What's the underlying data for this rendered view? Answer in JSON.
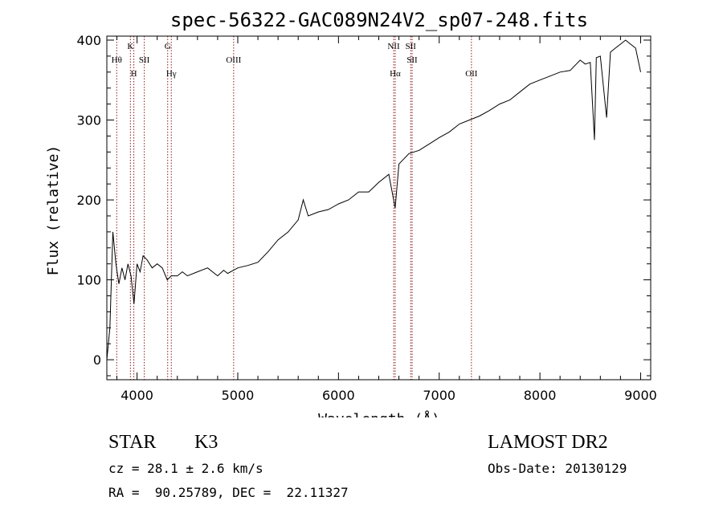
{
  "chart_data": {
    "type": "line",
    "title": "spec-56322-GAC089N24V2_sp07-248.fits",
    "xlabel": "Wavelength (Å)",
    "ylabel": "Flux (relative)",
    "xlim": [
      3700,
      9100
    ],
    "ylim": [
      -25,
      405
    ],
    "x_ticks": [
      4000,
      5000,
      6000,
      7000,
      8000,
      9000
    ],
    "y_ticks": [
      0,
      100,
      200,
      300,
      400
    ],
    "x_tick_labels": [
      "4000",
      "5000",
      "6000",
      "7000",
      "8000",
      "9000"
    ],
    "y_tick_labels": [
      "0",
      "100",
      "200",
      "300",
      "400"
    ],
    "grid": false,
    "line_color": "#000000",
    "marker_color": "#8b1a1a",
    "series": [
      {
        "x": [
          3700,
          3730,
          3760,
          3790,
          3820,
          3850,
          3880,
          3910,
          3940,
          3970,
          4000,
          4030,
          4060,
          4100,
          4150,
          4200,
          4250,
          4300,
          4340,
          4400,
          4450,
          4500,
          4600,
          4700,
          4800,
          4860,
          4900,
          5000,
          5100,
          5200,
          5300,
          5400,
          5500,
          5600,
          5650,
          5700,
          5800,
          5900,
          6000,
          6100,
          6200,
          6300,
          6400,
          6500,
          6563,
          6600,
          6700,
          6800,
          6900,
          7000,
          7100,
          7200,
          7300,
          7400,
          7500,
          7600,
          7700,
          7800,
          7900,
          8000,
          8100,
          8200,
          8300,
          8400,
          8450,
          8500,
          8542,
          8560,
          8600,
          8662,
          8700,
          8750,
          8800,
          8850,
          8900,
          8950,
          9000
        ],
        "y": [
          0,
          40,
          160,
          120,
          95,
          115,
          100,
          120,
          105,
          70,
          120,
          110,
          130,
          125,
          115,
          120,
          115,
          100,
          105,
          105,
          110,
          105,
          110,
          115,
          105,
          112,
          108,
          115,
          118,
          122,
          135,
          150,
          160,
          175,
          200,
          180,
          185,
          188,
          195,
          200,
          210,
          210,
          222,
          232,
          190,
          245,
          258,
          262,
          270,
          278,
          285,
          295,
          300,
          305,
          312,
          320,
          325,
          335,
          345,
          350,
          355,
          360,
          362,
          375,
          370,
          372,
          275,
          378,
          380,
          303,
          385,
          390,
          395,
          400,
          395,
          390,
          360
        ]
      }
    ],
    "line_markers": [
      {
        "wavelength": 3798,
        "label": "Hθ",
        "row": 2
      },
      {
        "wavelength": 3934,
        "label": "K",
        "row": 1
      },
      {
        "wavelength": 3968,
        "label": "H",
        "row": 3
      },
      {
        "wavelength": 4072,
        "label": "SII",
        "row": 2
      },
      {
        "wavelength": 4304,
        "label": "G",
        "row": 1
      },
      {
        "wavelength": 4340,
        "label": "Hγ",
        "row": 3
      },
      {
        "wavelength": 4959,
        "label": "OIII",
        "row": 2
      },
      {
        "wavelength": 6548,
        "label": "NII",
        "row": 1
      },
      {
        "wavelength": 6563,
        "label": "Hα",
        "row": 3
      },
      {
        "wavelength": 6717,
        "label": "SII",
        "row": 1
      },
      {
        "wavelength": 6731,
        "label": "SII",
        "row": 2
      },
      {
        "wavelength": 7320,
        "label": "OII",
        "row": 3
      }
    ]
  },
  "info": {
    "object_type": "STAR",
    "subclass": "K3",
    "survey": "LAMOST DR2",
    "cz": "cz = 28.1 ± 2.6 km/s",
    "obs_date": "Obs-Date: 20130129",
    "coords": "RA =  90.25789, DEC =  22.11327"
  }
}
